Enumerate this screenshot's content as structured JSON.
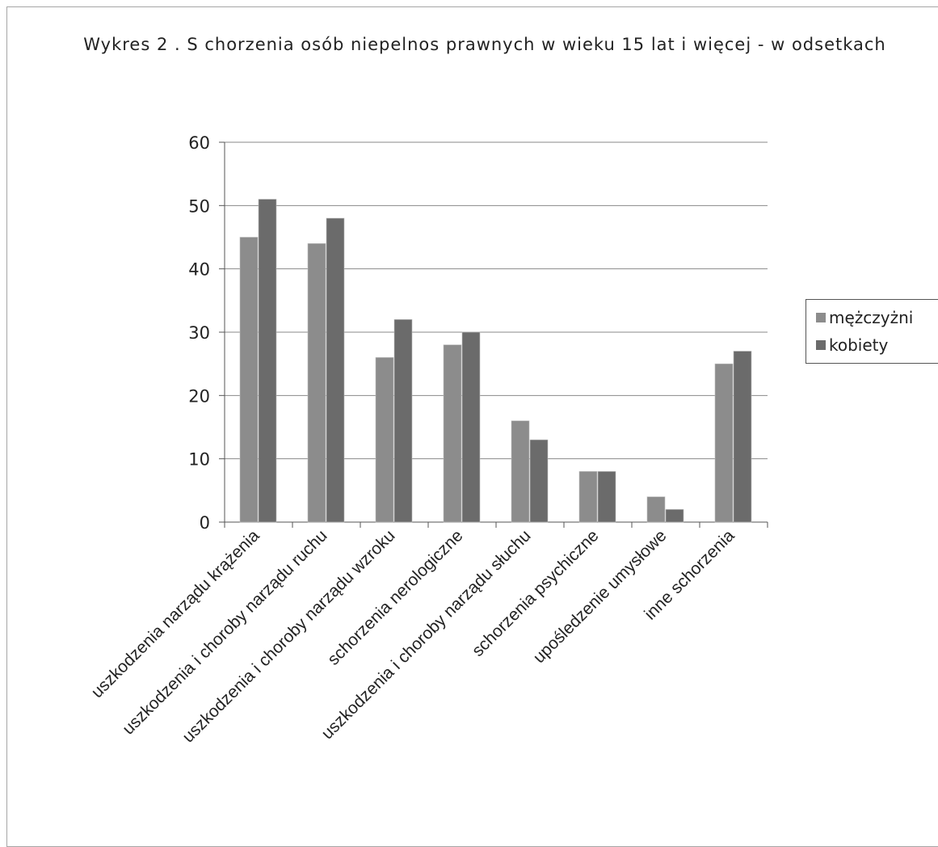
{
  "chart_data": {
    "type": "bar",
    "title": "Wykres 2 . S chorzenia osób niepelnos prawnych w wieku 15 lat i więcej - w odsetkach",
    "categories": [
      "uszkodzenia narządu krążenia",
      "uszkodzenia i choroby narządu ruchu",
      "uszkodzenia i choroby narządu wzroku",
      "schorzenia nerologiczne",
      "uszkodzenia i choroby narządu słuchu",
      "schorzenia psychiczne",
      "upośledzenie umysłowe",
      "inne schorzenia"
    ],
    "series": [
      {
        "name": "mężczyżni",
        "values": [
          45,
          44,
          26,
          28,
          16,
          8,
          4,
          25
        ],
        "color": "#8c8c8c"
      },
      {
        "name": "kobiety",
        "values": [
          51,
          48,
          32,
          30,
          13,
          8,
          2,
          27
        ],
        "color": "#6b6b6b"
      }
    ],
    "ylim": [
      0,
      60
    ],
    "yticks": [
      "0",
      "10",
      "20",
      "30",
      "40",
      "50",
      "60"
    ],
    "grid": true,
    "legend_position": "right",
    "xlabel": "",
    "ylabel": ""
  }
}
